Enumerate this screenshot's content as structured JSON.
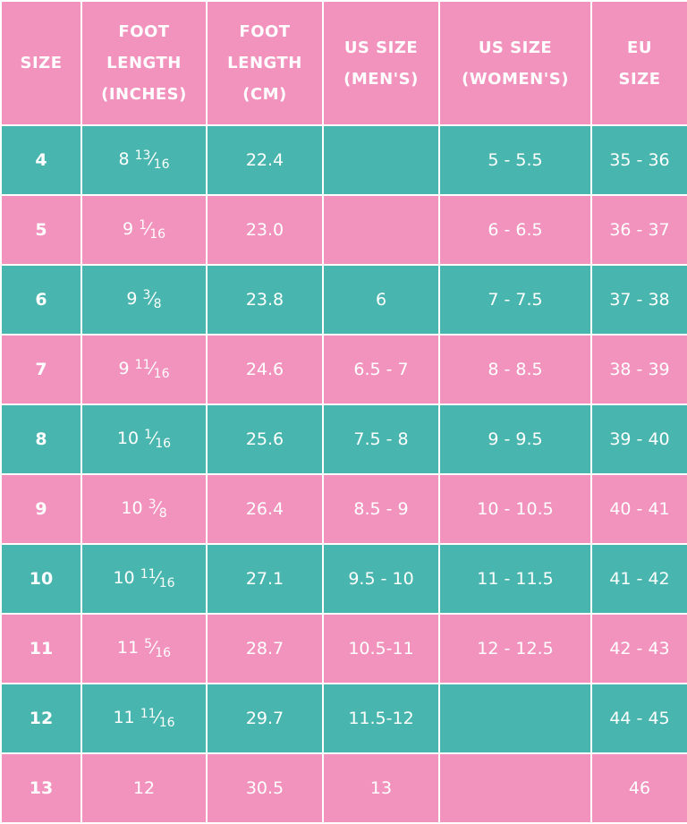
{
  "table": {
    "header": [
      [
        "SIZE"
      ],
      [
        "FOOT",
        "LENGTH",
        "(INCHES)"
      ],
      [
        "FOOT",
        "LENGTH",
        "(CM)"
      ],
      [
        "US SIZE",
        "(MEN'S)"
      ],
      [
        "US SIZE",
        "(WOMEN'S)"
      ],
      [
        "EU",
        "SIZE"
      ]
    ],
    "rows": [
      [
        "4",
        "8 13⁄16",
        "22.4",
        null,
        "5 - 5.5",
        "35 - 36"
      ],
      [
        "5",
        "9 1⁄16",
        "23.0",
        null,
        "6 - 6.5",
        "36 - 37"
      ],
      [
        "6",
        "9 3⁄8",
        "23.8",
        "6",
        "7 - 7.5",
        "37 - 38"
      ],
      [
        "7",
        "9 11⁄16",
        "24.6",
        "6.5 - 7",
        "8 - 8.5",
        "38 - 39"
      ],
      [
        "8",
        "10 1⁄16",
        "25.6",
        "7.5 - 8",
        "9 - 9.5",
        "39 - 40"
      ],
      [
        "9",
        "10 3⁄8",
        "26.4",
        "8.5 - 9",
        "10 - 10.5",
        "40 - 41"
      ],
      [
        "10",
        "10 11⁄16",
        "27.1",
        "9.5 - 10",
        "11 - 11.5",
        "41 - 42"
      ],
      [
        "11",
        "11 5⁄16",
        "28.7",
        "10.5-11",
        "12 - 12.5",
        "42 - 43"
      ],
      [
        "12",
        "11 11⁄16",
        "29.7",
        "11.5-12",
        null,
        "44 - 45"
      ],
      [
        "13",
        "12",
        "30.5",
        "13",
        null,
        "46"
      ]
    ]
  }
}
